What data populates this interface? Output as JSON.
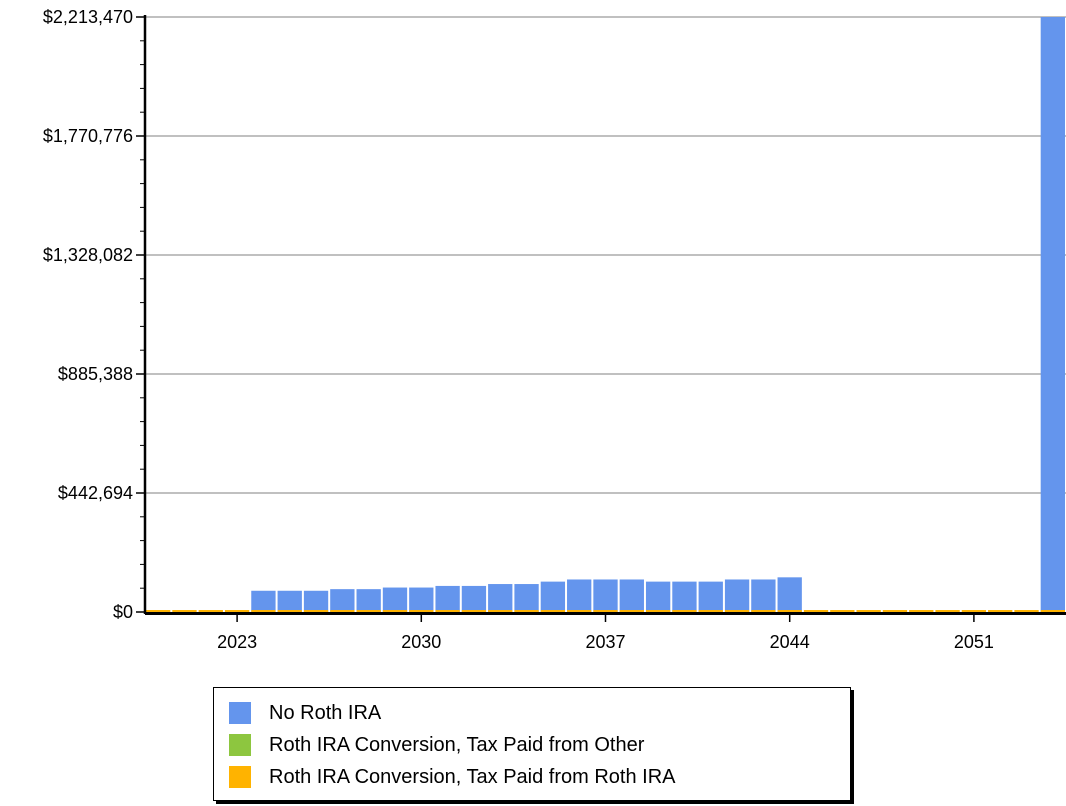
{
  "chart_data": {
    "type": "bar",
    "x": [
      2020,
      2021,
      2022,
      2023,
      2024,
      2025,
      2026,
      2027,
      2028,
      2029,
      2030,
      2031,
      2032,
      2033,
      2034,
      2035,
      2036,
      2037,
      2038,
      2039,
      2040,
      2041,
      2042,
      2043,
      2044,
      2045,
      2046,
      2047,
      2048,
      2049,
      2050,
      2051,
      2052,
      2053,
      2054
    ],
    "x_ticks": [
      "2023",
      "2030",
      "2037",
      "2044",
      "2051"
    ],
    "y_ticks": [
      "$0",
      "$442,694",
      "$885,388",
      "$1,328,082",
      "$1,770,776",
      "$2,213,470"
    ],
    "ylim": [
      0,
      2213470
    ],
    "grid": true,
    "legend_position": "bottom",
    "series": [
      {
        "name": "No Roth IRA",
        "color": "#6495ED",
        "values": [
          0,
          0,
          0,
          0,
          79000,
          79000,
          79000,
          85000,
          85000,
          91000,
          91000,
          97000,
          97000,
          104000,
          104000,
          113000,
          121000,
          121000,
          121000,
          113000,
          113000,
          113000,
          121000,
          121000,
          129000,
          0,
          0,
          0,
          0,
          0,
          0,
          0,
          0,
          0,
          2213470
        ]
      },
      {
        "name": "Roth IRA Conversion, Tax Paid from Other",
        "color": "#8DC63F",
        "values": [
          0,
          0,
          0,
          0,
          0,
          0,
          0,
          0,
          0,
          0,
          0,
          0,
          0,
          0,
          0,
          0,
          0,
          0,
          0,
          0,
          0,
          0,
          0,
          0,
          0,
          0,
          0,
          0,
          0,
          0,
          0,
          0,
          0,
          0,
          0
        ]
      },
      {
        "name": "Roth IRA Conversion, Tax Paid from Roth IRA",
        "color": "#FFB300",
        "values": [
          6000,
          6000,
          6000,
          6000,
          6000,
          6000,
          6000,
          6000,
          6000,
          6000,
          6000,
          6000,
          6000,
          6000,
          6000,
          6000,
          6000,
          6000,
          6000,
          6000,
          6000,
          6000,
          6000,
          6000,
          6000,
          6000,
          6000,
          6000,
          6000,
          6000,
          6000,
          6000,
          6000,
          6000,
          6000
        ]
      }
    ]
  }
}
